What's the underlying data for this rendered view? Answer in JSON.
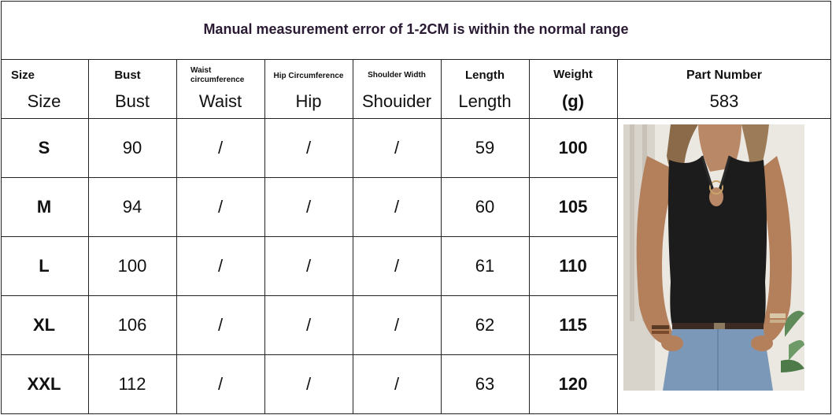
{
  "banner": {
    "text": "Manual measurement error of 1-2CM is within the normal range"
  },
  "headers": [
    {
      "top": "Size",
      "bottom": "Size"
    },
    {
      "top": "Bust",
      "bottom": "Bust"
    },
    {
      "top": "Waist circumference",
      "bottom": "Waist"
    },
    {
      "top": "Hip Circumference",
      "bottom": "Hip"
    },
    {
      "top": "Shoulder Width",
      "bottom": "Shouider"
    },
    {
      "top": "Length",
      "bottom": "Length"
    },
    {
      "top": "Weight",
      "bottom": "(g)"
    },
    {
      "top": "Part Number",
      "bottom": "583"
    }
  ],
  "rows": [
    {
      "size": "S",
      "bust": "90",
      "waist": "/",
      "hip": "/",
      "shoulder": "/",
      "length": "59",
      "weight": "100"
    },
    {
      "size": "M",
      "bust": "94",
      "waist": "/",
      "hip": "/",
      "shoulder": "/",
      "length": "60",
      "weight": "105"
    },
    {
      "size": "L",
      "bust": "100",
      "waist": "/",
      "hip": "/",
      "shoulder": "/",
      "length": "61",
      "weight": "110"
    },
    {
      "size": "XL",
      "bust": "106",
      "waist": "/",
      "hip": "/",
      "shoulder": "/",
      "length": "62",
      "weight": "115"
    },
    {
      "size": "XXL",
      "bust": "112",
      "waist": "/",
      "hip": "/",
      "shoulder": "/",
      "length": "63",
      "weight": "120"
    }
  ],
  "colors": {
    "garment": "#1c1c1c",
    "banner_text": "#2a1a33"
  }
}
